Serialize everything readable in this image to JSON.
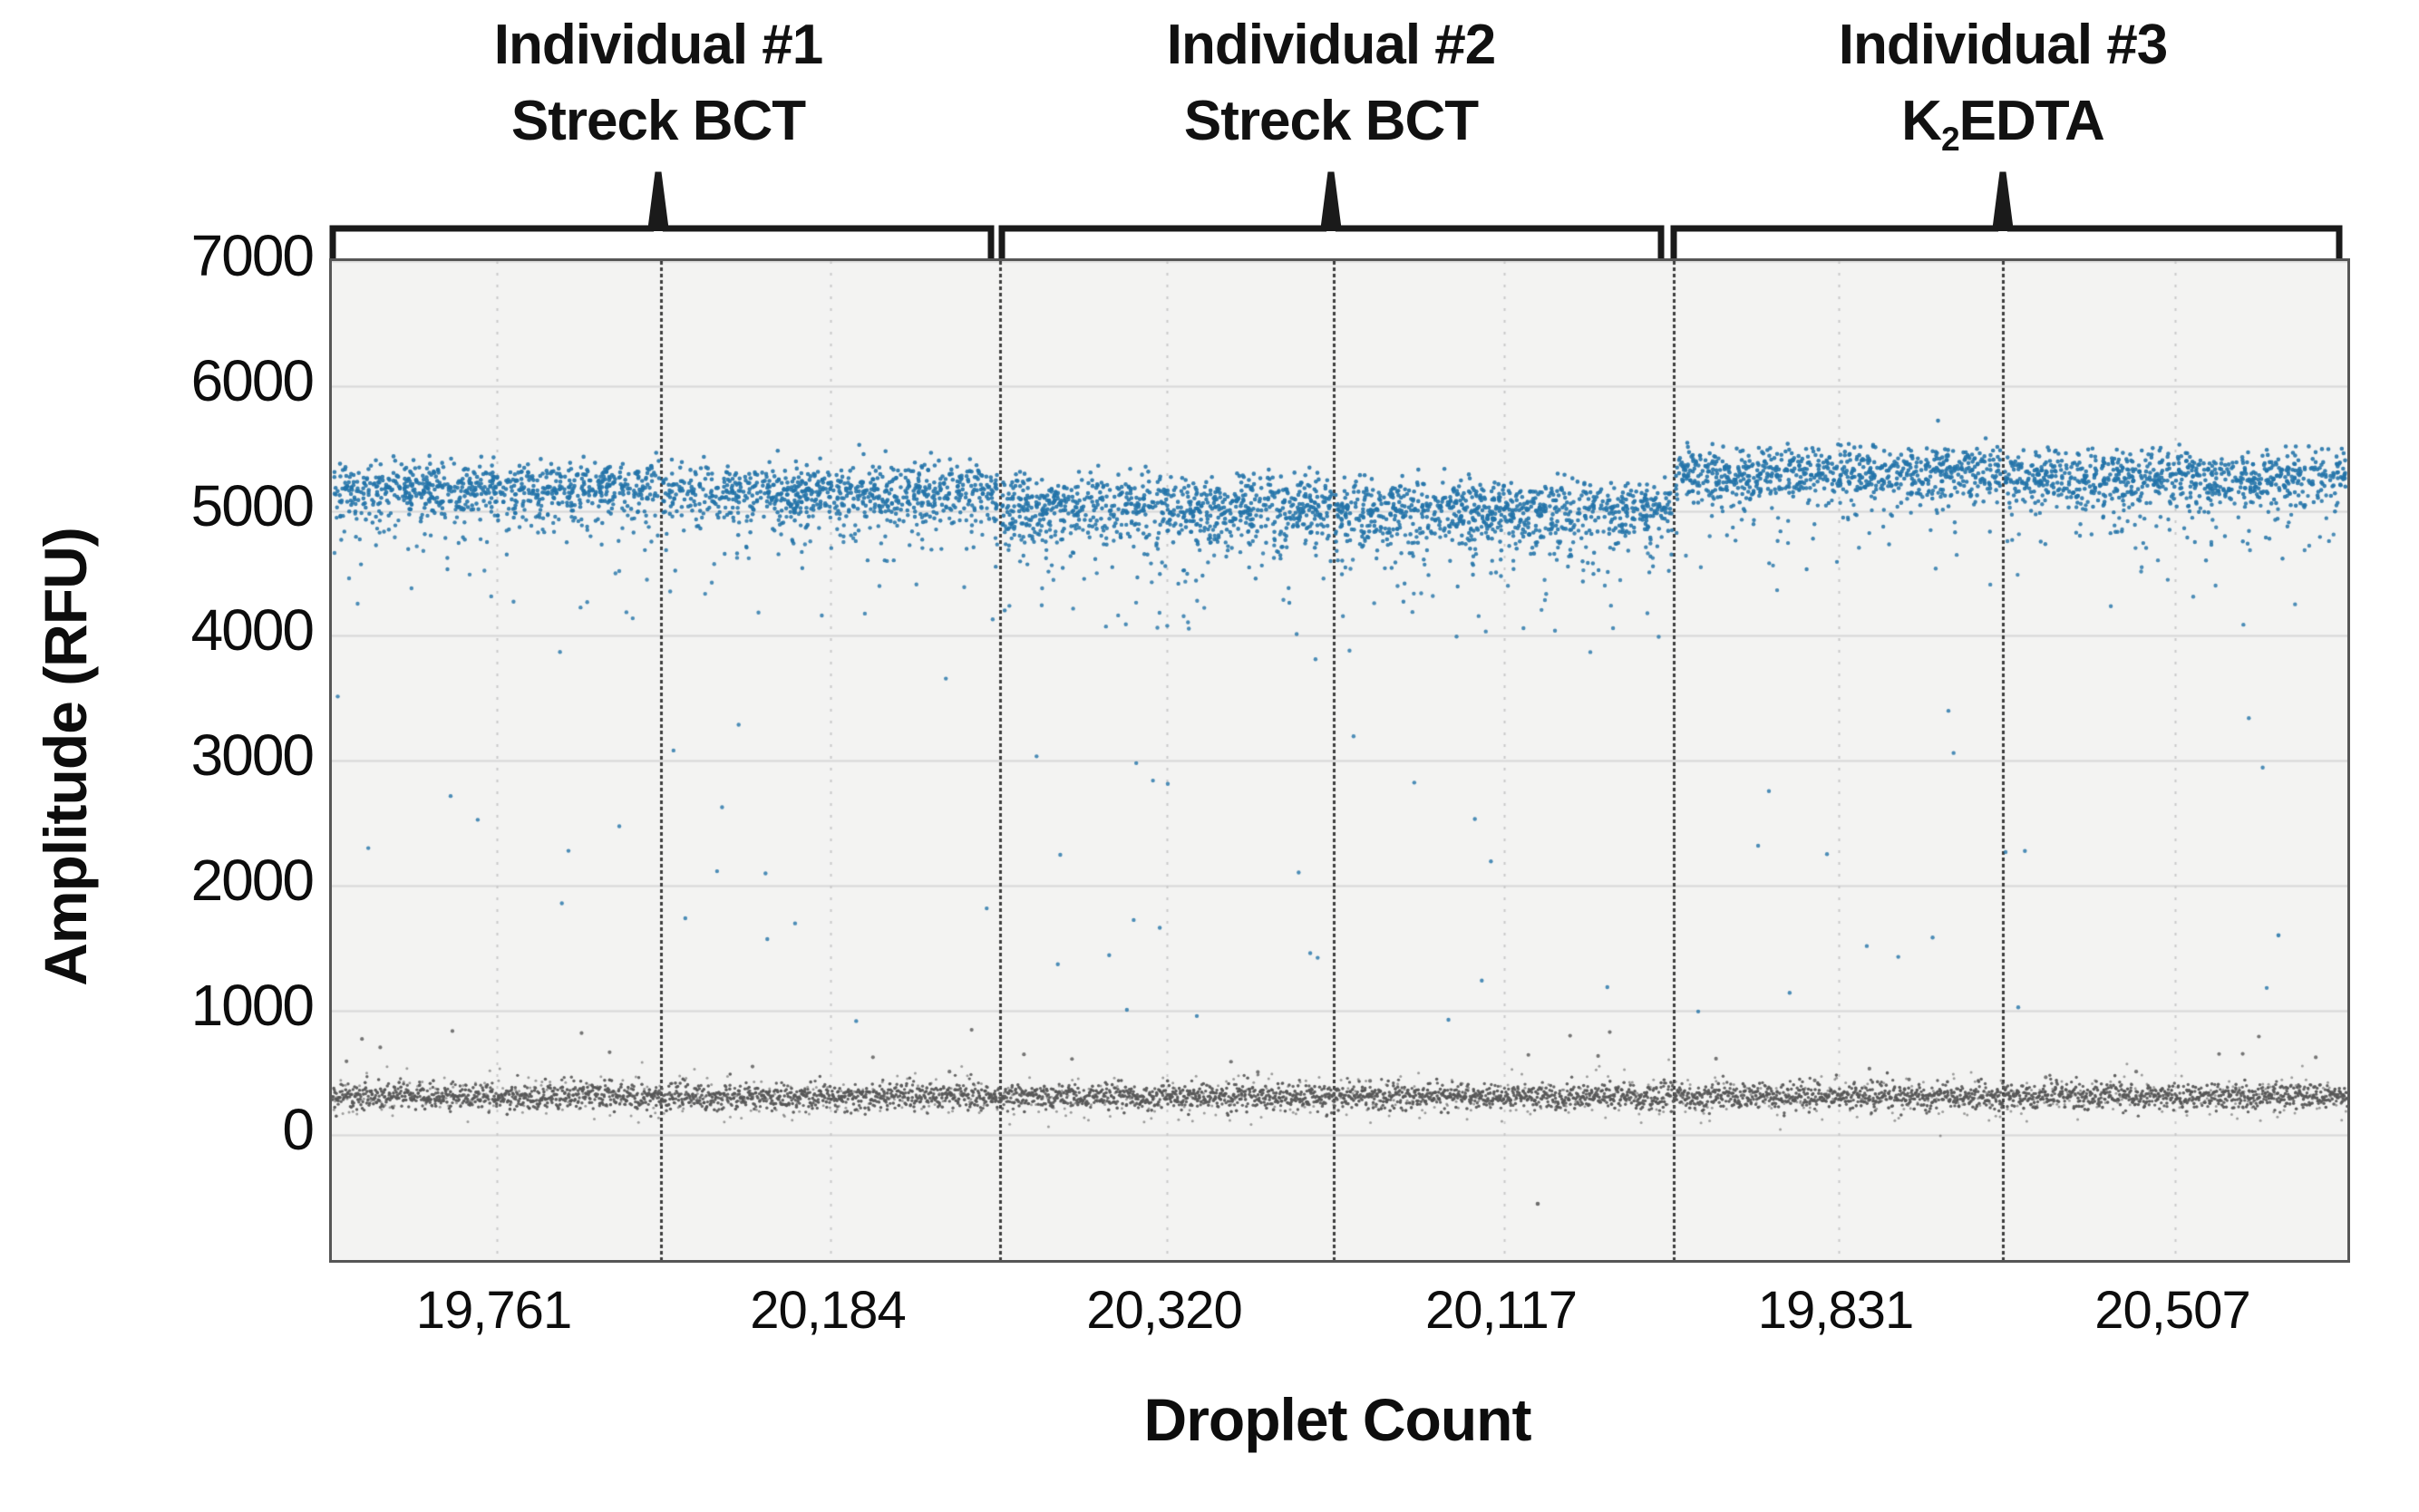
{
  "figure": {
    "background": "#ffffff",
    "plot_background": "#f3f3f2",
    "border_color": "#565656",
    "gridline_color": "#d8d8d8",
    "dotted_gridline_color": "#c9c9c9",
    "divider_color": "#3d3d3d",
    "bracket_color": "#1a1a1a"
  },
  "chart_data": {
    "type": "scatter",
    "description": "ddPCR 1-D droplet amplitude plot: positive droplet cluster near 5000-5300 RFU (blue), negative droplet band near 300 RFU (dark gray), sparse rain between, for 6 wells from 3 individuals",
    "xlabel": "Droplet Count",
    "ylabel": "Amplitude (RFU)",
    "ylim": [
      -1000,
      7000
    ],
    "yticks": [
      7000,
      6000,
      5000,
      4000,
      3000,
      2000,
      1000,
      0
    ],
    "grid": {
      "horizontal_every_rfu": 1000,
      "vertical_dotted_mid_panel": true,
      "legend": "none"
    },
    "series_colors": {
      "positive": "#2273a8",
      "negative": "#565656"
    },
    "title_groups": [
      {
        "line1": "Individual #1",
        "line2_pre": "Streck BCT",
        "line2_sub": "",
        "line2_post": ""
      },
      {
        "line1": "Individual #2",
        "line2_pre": "Streck BCT",
        "line2_sub": "",
        "line2_post": ""
      },
      {
        "line1": "Individual #3",
        "line2_pre": "K",
        "line2_sub": "2",
        "line2_post": "EDTA"
      }
    ],
    "x_categories": [
      "19,761",
      "20,184",
      "20,320",
      "20,117",
      "19,831",
      "20,507"
    ],
    "panels": [
      {
        "group": "Individual #1",
        "tube": "Streck BCT",
        "droplet_count_label": "19,761",
        "droplet_count": 19761,
        "positive_mean_rfu": 5190,
        "positive_sd_rfu": 105,
        "positive_count": 680,
        "tail_count": 115,
        "rain_count": 26,
        "negative_mean_rfu": 310,
        "negative_sd_rfu": 55
      },
      {
        "group": "Individual #1",
        "tube": "Streck BCT",
        "droplet_count_label": "20,184",
        "droplet_count": 20184,
        "positive_mean_rfu": 5165,
        "positive_sd_rfu": 110,
        "positive_count": 700,
        "tail_count": 125,
        "rain_count": 30,
        "negative_mean_rfu": 310,
        "negative_sd_rfu": 55
      },
      {
        "group": "Individual #2",
        "tube": "Streck BCT",
        "droplet_count_label": "20,320",
        "droplet_count": 20320,
        "positive_mean_rfu": 5040,
        "positive_sd_rfu": 118,
        "positive_count": 720,
        "tail_count": 155,
        "rain_count": 40,
        "negative_mean_rfu": 310,
        "negative_sd_rfu": 55
      },
      {
        "group": "Individual #2",
        "tube": "Streck BCT",
        "droplet_count_label": "20,117",
        "droplet_count": 20117,
        "positive_mean_rfu": 5010,
        "positive_sd_rfu": 122,
        "positive_count": 730,
        "tail_count": 165,
        "rain_count": 38,
        "negative_mean_rfu": 310,
        "negative_sd_rfu": 55
      },
      {
        "group": "Individual #3",
        "tube": "K2EDTA",
        "droplet_count_label": "19,831",
        "droplet_count": 19831,
        "positive_mean_rfu": 5310,
        "positive_sd_rfu": 100,
        "positive_count": 700,
        "tail_count": 90,
        "rain_count": 20,
        "negative_mean_rfu": 310,
        "negative_sd_rfu": 55
      },
      {
        "group": "Individual #3",
        "tube": "K2EDTA",
        "droplet_count_label": "20,507",
        "droplet_count": 20507,
        "positive_mean_rfu": 5270,
        "positive_sd_rfu": 108,
        "positive_count": 720,
        "tail_count": 110,
        "rain_count": 26,
        "negative_mean_rfu": 310,
        "negative_sd_rfu": 55
      }
    ],
    "outliers": [
      {
        "panel": 4,
        "x_frac": 0.6,
        "rfu": -550,
        "series": "negative"
      },
      {
        "panel": 6,
        "x_frac": 0.8,
        "rfu": 1600,
        "series": "positive"
      }
    ]
  }
}
